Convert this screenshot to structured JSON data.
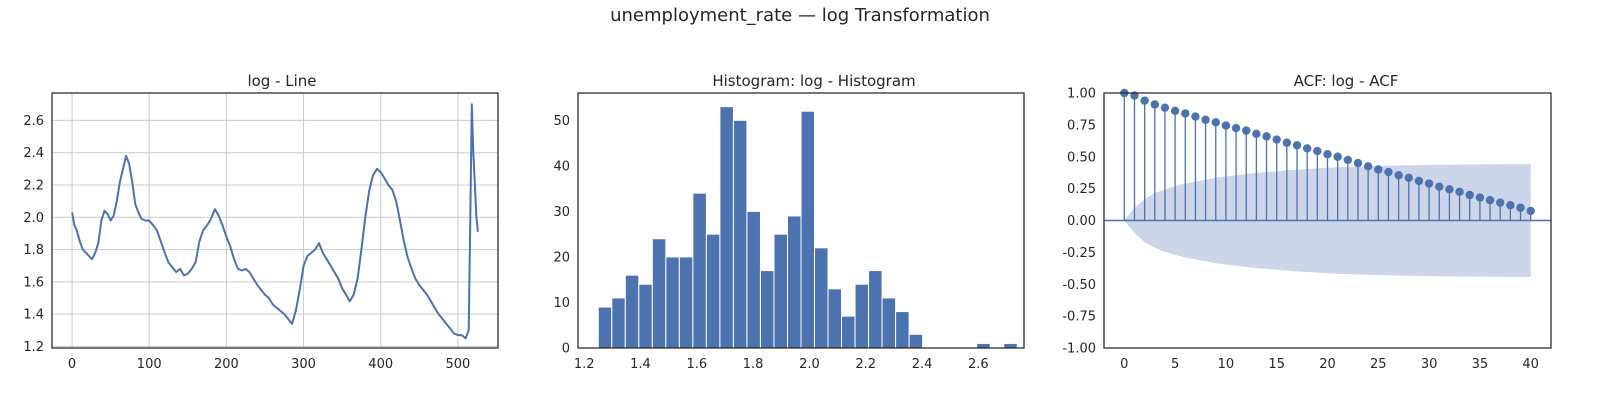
{
  "figure": {
    "suptitle": "unemployment_rate — log Transformation"
  },
  "colors": {
    "series": "#4c72b0",
    "confidence_band": "#ccd6e8",
    "grid": "#cccccc",
    "axes": "#262626"
  },
  "chart_data": [
    {
      "type": "line",
      "title": "log - Line",
      "xlabel": "",
      "ylabel": "",
      "grid": true,
      "xlim": [
        -26,
        552
      ],
      "ylim": [
        1.19,
        2.77
      ],
      "xticks": [
        0,
        100,
        200,
        300,
        400,
        500
      ],
      "yticks": [
        1.2,
        1.4,
        1.6,
        1.8,
        2.0,
        2.2,
        2.4,
        2.6
      ],
      "series": [
        {
          "x": [
            0,
            3,
            6,
            10,
            14,
            18,
            22,
            26,
            30,
            34,
            38,
            42,
            46,
            50,
            54,
            58,
            62,
            66,
            70,
            74,
            78,
            82,
            86,
            90,
            95,
            100,
            105,
            110,
            115,
            120,
            125,
            130,
            135,
            140,
            145,
            150,
            155,
            160,
            165,
            170,
            175,
            180,
            185,
            190,
            195,
            200,
            205,
            210,
            215,
            220,
            225,
            230,
            235,
            240,
            245,
            250,
            255,
            260,
            265,
            270,
            275,
            280,
            285,
            290,
            295,
            300,
            305,
            310,
            315,
            320,
            325,
            330,
            335,
            340,
            345,
            350,
            355,
            360,
            365,
            370,
            375,
            380,
            385,
            390,
            395,
            400,
            405,
            410,
            415,
            420,
            425,
            430,
            435,
            440,
            445,
            450,
            455,
            460,
            465,
            470,
            475,
            480,
            485,
            490,
            495,
            500,
            505,
            510,
            514,
            516,
            518,
            520,
            522,
            524,
            526
          ],
          "values": [
            2.03,
            1.95,
            1.92,
            1.85,
            1.8,
            1.78,
            1.76,
            1.74,
            1.78,
            1.84,
            1.98,
            2.04,
            2.02,
            1.98,
            2.01,
            2.1,
            2.22,
            2.3,
            2.38,
            2.33,
            2.22,
            2.08,
            2.03,
            1.99,
            1.98,
            1.98,
            1.95,
            1.92,
            1.85,
            1.78,
            1.72,
            1.69,
            1.66,
            1.68,
            1.64,
            1.65,
            1.68,
            1.72,
            1.85,
            1.92,
            1.95,
            1.99,
            2.05,
            2.01,
            1.95,
            1.88,
            1.82,
            1.74,
            1.68,
            1.67,
            1.68,
            1.66,
            1.62,
            1.58,
            1.55,
            1.52,
            1.5,
            1.46,
            1.44,
            1.42,
            1.4,
            1.37,
            1.34,
            1.42,
            1.55,
            1.7,
            1.76,
            1.78,
            1.8,
            1.84,
            1.78,
            1.74,
            1.7,
            1.66,
            1.62,
            1.56,
            1.52,
            1.48,
            1.52,
            1.62,
            1.8,
            2.0,
            2.16,
            2.26,
            2.3,
            2.28,
            2.24,
            2.2,
            2.17,
            2.1,
            1.98,
            1.85,
            1.75,
            1.68,
            1.62,
            1.58,
            1.55,
            1.52,
            1.48,
            1.44,
            1.4,
            1.37,
            1.34,
            1.31,
            1.28,
            1.27,
            1.27,
            1.25,
            1.3,
            1.95,
            2.7,
            2.4,
            2.2,
            2.0,
            1.91
          ]
        }
      ]
    },
    {
      "type": "bar",
      "title": "Histogram: log - Histogram",
      "xlabel": "",
      "ylabel": "",
      "grid": false,
      "xlim": [
        1.178,
        2.762
      ],
      "ylim": [
        0,
        56
      ],
      "xticks": [
        1.2,
        1.4,
        1.6,
        1.8,
        2.0,
        2.2,
        2.4,
        2.6
      ],
      "yticks": [
        0,
        10,
        20,
        30,
        40,
        50
      ],
      "bin_start": 1.25,
      "bin_width": 0.048,
      "values": [
        9,
        11,
        16,
        14,
        24,
        20,
        20,
        34,
        25,
        53,
        50,
        30,
        17,
        25,
        29,
        52,
        22,
        13,
        7,
        14,
        17,
        11,
        8,
        3,
        0,
        0,
        0,
        0,
        1,
        0,
        1
      ]
    },
    {
      "type": "scatter",
      "title": "ACF: log - ACF",
      "xlabel": "",
      "ylabel": "",
      "grid": false,
      "xlim": [
        -2,
        42
      ],
      "ylim": [
        -1.0,
        1.0
      ],
      "xticks": [
        0,
        5,
        10,
        15,
        20,
        25,
        30,
        35,
        40
      ],
      "yticks": [
        -1.0,
        -0.75,
        -0.5,
        -0.25,
        0.0,
        0.25,
        0.5,
        0.75,
        1.0
      ],
      "lags": [
        0,
        1,
        2,
        3,
        4,
        5,
        6,
        7,
        8,
        9,
        10,
        11,
        12,
        13,
        14,
        15,
        16,
        17,
        18,
        19,
        20,
        21,
        22,
        23,
        24,
        25,
        26,
        27,
        28,
        29,
        30,
        31,
        32,
        33,
        34,
        35,
        36,
        37,
        38,
        39,
        40
      ],
      "values": [
        1.0,
        0.98,
        0.94,
        0.91,
        0.885,
        0.86,
        0.84,
        0.815,
        0.79,
        0.77,
        0.745,
        0.725,
        0.705,
        0.68,
        0.66,
        0.635,
        0.61,
        0.59,
        0.565,
        0.545,
        0.52,
        0.5,
        0.475,
        0.45,
        0.425,
        0.4,
        0.38,
        0.355,
        0.335,
        0.31,
        0.29,
        0.265,
        0.245,
        0.225,
        0.2,
        0.18,
        0.16,
        0.14,
        0.12,
        0.1,
        0.075
      ],
      "confidence_upper": [
        0,
        0.098,
        0.17,
        0.215,
        0.245,
        0.27,
        0.29,
        0.305,
        0.32,
        0.335,
        0.345,
        0.355,
        0.365,
        0.373,
        0.38,
        0.387,
        0.393,
        0.399,
        0.404,
        0.409,
        0.413,
        0.417,
        0.42,
        0.423,
        0.426,
        0.428,
        0.43,
        0.432,
        0.434,
        0.435,
        0.436,
        0.437,
        0.438,
        0.439,
        0.44,
        0.44,
        0.441,
        0.441,
        0.442,
        0.442,
        0.442
      ]
    }
  ]
}
